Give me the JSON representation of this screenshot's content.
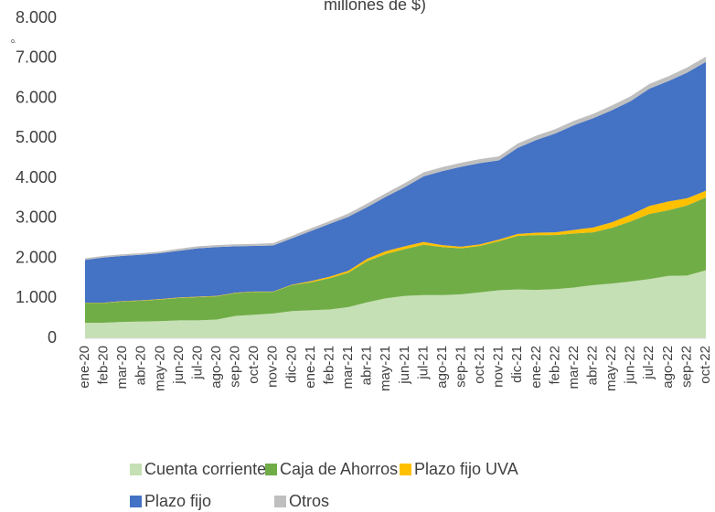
{
  "chart_data": {
    "type": "stacked_area",
    "title": "millones de $)",
    "annotation": "o.",
    "categories": [
      "ene-20",
      "feb-20",
      "mar-20",
      "abr-20",
      "may-20",
      "jun-20",
      "jul-20",
      "ago-20",
      "sep-20",
      "oct-20",
      "nov-20",
      "dic-20",
      "ene-21",
      "feb-21",
      "mar-21",
      "abr-21",
      "may-21",
      "jun-21",
      "jul-21",
      "ago-21",
      "sep-21",
      "oct-21",
      "nov-21",
      "dic-21",
      "ene-22",
      "feb-22",
      "mar-22",
      "abr-22",
      "may-22",
      "jun-22",
      "jul-22",
      "ago-22",
      "sep-22",
      "oct-22"
    ],
    "series": [
      {
        "name": "Cuenta corriente",
        "color": "#c5e0b4",
        "values": [
          390,
          390,
          410,
          420,
          430,
          450,
          450,
          470,
          560,
          590,
          620,
          680,
          700,
          720,
          780,
          900,
          1000,
          1060,
          1080,
          1080,
          1100,
          1150,
          1200,
          1220,
          1210,
          1230,
          1270,
          1330,
          1370,
          1420,
          1480,
          1560,
          1570,
          1700
        ]
      },
      {
        "name": "Caja de Ahorros",
        "color": "#70ad47",
        "values": [
          490,
          490,
          510,
          520,
          540,
          560,
          580,
          580,
          570,
          570,
          540,
          650,
          700,
          780,
          860,
          1030,
          1110,
          1170,
          1260,
          1200,
          1150,
          1160,
          1230,
          1340,
          1370,
          1350,
          1350,
          1320,
          1390,
          1500,
          1630,
          1640,
          1750,
          1820
        ]
      },
      {
        "name": "Plazo fijo UVA",
        "color": "#ffc000",
        "values": [
          10,
          10,
          10,
          10,
          10,
          10,
          10,
          10,
          10,
          10,
          10,
          10,
          30,
          40,
          50,
          60,
          70,
          70,
          70,
          50,
          40,
          40,
          40,
          50,
          60,
          70,
          90,
          120,
          140,
          170,
          200,
          220,
          180,
          170
        ]
      },
      {
        "name": "Plazo fijo",
        "color": "#4472c4",
        "values": [
          1070,
          1130,
          1130,
          1140,
          1150,
          1170,
          1210,
          1220,
          1160,
          1140,
          1150,
          1160,
          1250,
          1320,
          1350,
          1290,
          1360,
          1480,
          1640,
          1850,
          2000,
          2030,
          1980,
          2150,
          2320,
          2470,
          2620,
          2730,
          2800,
          2840,
          2930,
          3010,
          3140,
          3220
        ]
      },
      {
        "name": "Otros",
        "color": "#bfbfbf",
        "values": [
          40,
          40,
          40,
          40,
          40,
          50,
          50,
          50,
          50,
          50,
          60,
          60,
          70,
          70,
          80,
          90,
          90,
          100,
          100,
          100,
          100,
          100,
          100,
          110,
          110,
          110,
          110,
          110,
          120,
          120,
          120,
          120,
          130,
          130
        ]
      }
    ],
    "ylim": [
      0,
      8000
    ],
    "yticks": [
      0,
      {
        "value": 1000,
        "label": "1.000"
      },
      {
        "value": 2000,
        "label": "2.000"
      },
      {
        "value": 3000,
        "label": "3.000"
      },
      {
        "value": 4000,
        "label": "4.000"
      },
      {
        "value": 5000,
        "label": "5.000"
      },
      {
        "value": 6000,
        "label": "6.000"
      },
      {
        "value": 7000,
        "label": "7.000"
      },
      {
        "value": 8000,
        "label": "8.000"
      }
    ],
    "legend": "bottom"
  }
}
